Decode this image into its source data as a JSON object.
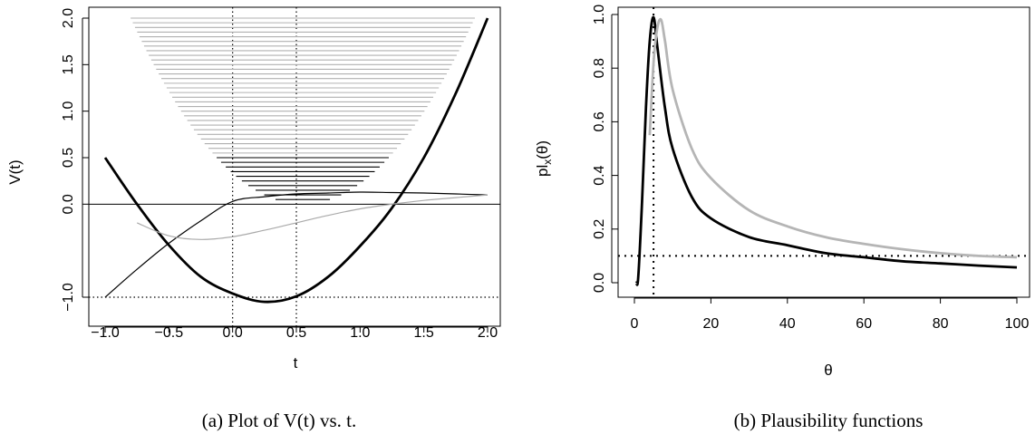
{
  "chart_data": [
    {
      "type": "line",
      "caption": "(a) Plot of V(t) vs. t.",
      "xlabel": "t",
      "ylabel": "V(t)",
      "xlim": [
        -1.0,
        2.0
      ],
      "ylim": [
        -1.0,
        2.0
      ],
      "x_ticks": [
        -1.0,
        -0.5,
        0.0,
        0.5,
        1.0,
        1.5,
        2.0
      ],
      "x_tick_labels": [
        "−1.0",
        "−0.5",
        "0.0",
        "0.5",
        "1.0",
        "1.5",
        "2.0"
      ],
      "y_ticks": [
        -1.0,
        0.0,
        0.5,
        1.0,
        1.5,
        2.0
      ],
      "y_tick_labels": [
        "−1.0",
        "0.0",
        "0.5",
        "1.0",
        "1.5",
        "2.0"
      ],
      "grid": false,
      "reference_lines": [
        {
          "orientation": "horizontal",
          "value": 0.0,
          "style": "solid"
        },
        {
          "orientation": "horizontal",
          "value": -1.0,
          "style": "dotted"
        },
        {
          "orientation": "vertical",
          "value": 0.0,
          "style": "dotted"
        },
        {
          "orientation": "vertical",
          "value": 0.5,
          "style": "dotted"
        }
      ],
      "series": [
        {
          "color": "#000000",
          "weight": "thick",
          "x": [
            -1.0,
            -0.75,
            -0.5,
            -0.25,
            0.0,
            0.25,
            0.5,
            0.75,
            1.0,
            1.25,
            1.5,
            1.75,
            2.0
          ],
          "y": [
            0.5,
            0.0,
            -0.44,
            -0.78,
            -0.96,
            -1.05,
            -0.99,
            -0.78,
            -0.45,
            -0.04,
            0.5,
            1.19,
            2.0
          ]
        },
        {
          "color": "#000000",
          "weight": "thin",
          "x": [
            -1.0,
            -0.75,
            -0.5,
            -0.25,
            0.0,
            0.25,
            0.5,
            0.75,
            1.0,
            1.25,
            1.5,
            1.75,
            2.0
          ],
          "y": [
            -1.0,
            -0.7,
            -0.42,
            -0.18,
            0.03,
            0.08,
            0.11,
            0.12,
            0.13,
            0.125,
            0.12,
            0.11,
            0.1
          ]
        },
        {
          "color": "#aaaaaa",
          "weight": "thin",
          "x": [
            -0.75,
            -0.5,
            -0.25,
            0.0,
            0.25,
            0.5,
            0.75,
            1.0,
            1.25,
            1.5,
            1.75,
            2.0
          ],
          "y": [
            -0.2,
            -0.34,
            -0.38,
            -0.35,
            -0.28,
            -0.2,
            -0.12,
            -0.05,
            0.0,
            0.04,
            0.07,
            0.1
          ]
        }
      ],
      "horizontal_segments": {
        "black_y_range": [
          0.05,
          0.5
        ],
        "gray_y_range": [
          0.5,
          2.0
        ],
        "spacing": 0.05,
        "left_end_at_top": -0.8,
        "right_end_at_top": 1.9
      }
    },
    {
      "type": "line",
      "caption": "(b) Plausibility functions",
      "xlabel": "θ",
      "ylabel": "pl",
      "ylabel_subscript": "x",
      "ylabel_suffix": "(θ)",
      "xlim": [
        0,
        100
      ],
      "ylim": [
        0.0,
        1.0
      ],
      "x_ticks": [
        0,
        20,
        40,
        60,
        80,
        100
      ],
      "x_tick_labels": [
        "0",
        "20",
        "40",
        "60",
        "80",
        "100"
      ],
      "y_ticks": [
        0.0,
        0.2,
        0.4,
        0.6,
        0.8,
        1.0
      ],
      "y_tick_labels": [
        "0.0",
        "0.2",
        "0.4",
        "0.6",
        "0.8",
        "1.0"
      ],
      "grid": false,
      "reference_lines": [
        {
          "orientation": "horizontal",
          "value": 0.1,
          "style": "dotted"
        },
        {
          "orientation": "vertical",
          "value": 5,
          "style": "dotted"
        }
      ],
      "series": [
        {
          "color": "#000000",
          "weight": "thick",
          "x": [
            0.5,
            1,
            2,
            3,
            4,
            5,
            6,
            8,
            10,
            15,
            20,
            30,
            40,
            50,
            60,
            70,
            80,
            90,
            100
          ],
          "y": [
            0.0,
            0.02,
            0.3,
            0.65,
            0.9,
            0.99,
            0.88,
            0.65,
            0.5,
            0.32,
            0.24,
            0.17,
            0.14,
            0.11,
            0.095,
            0.08,
            0.072,
            0.064,
            0.057
          ]
        },
        {
          "color": "#b5b5b5",
          "weight": "thick",
          "x": [
            4,
            5,
            6,
            7,
            8,
            10,
            15,
            20,
            30,
            40,
            50,
            60,
            70,
            80,
            90,
            100
          ],
          "y": [
            0.55,
            0.82,
            0.95,
            0.98,
            0.9,
            0.72,
            0.5,
            0.39,
            0.27,
            0.21,
            0.17,
            0.145,
            0.125,
            0.11,
            0.1,
            0.095
          ]
        }
      ]
    }
  ]
}
